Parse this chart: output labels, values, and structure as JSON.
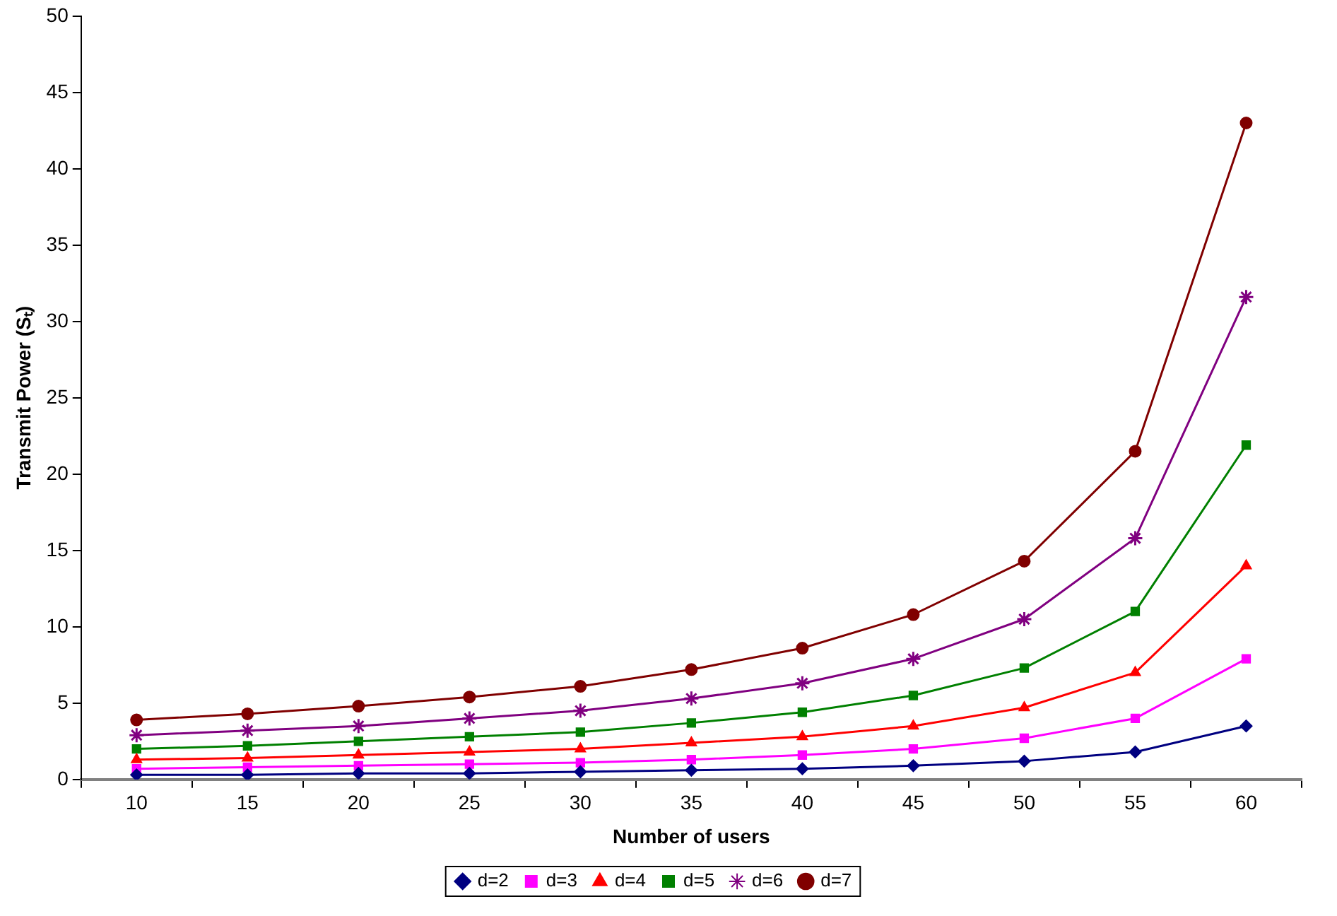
{
  "chart_data": {
    "type": "line",
    "xlabel": "Number of users",
    "ylabel": "Transmit Power (Sₜ)",
    "categories": [
      "10",
      "15",
      "20",
      "25",
      "30",
      "35",
      "40",
      "45",
      "50",
      "55",
      "60"
    ],
    "ylim": [
      0,
      50
    ],
    "yticks": [
      0,
      5,
      10,
      15,
      20,
      25,
      30,
      35,
      40,
      45,
      50
    ],
    "legend": "bottom",
    "series": [
      {
        "name": "d=2",
        "color": "#000080",
        "marker": "diamond",
        "values": [
          0.3,
          0.3,
          0.4,
          0.4,
          0.5,
          0.6,
          0.7,
          0.9,
          1.2,
          1.8,
          3.5
        ]
      },
      {
        "name": "d=3",
        "color": "#ff00ff",
        "marker": "square",
        "values": [
          0.7,
          0.8,
          0.9,
          1.0,
          1.1,
          1.3,
          1.6,
          2.0,
          2.7,
          4.0,
          7.9
        ]
      },
      {
        "name": "d=4",
        "color": "#ff0000",
        "marker": "triangle",
        "values": [
          1.3,
          1.4,
          1.6,
          1.8,
          2.0,
          2.4,
          2.8,
          3.5,
          4.7,
          7.0,
          14.0
        ]
      },
      {
        "name": "d=5",
        "color": "#008000",
        "marker": "square",
        "values": [
          2.0,
          2.2,
          2.5,
          2.8,
          3.1,
          3.7,
          4.4,
          5.5,
          7.3,
          11.0,
          21.9
        ]
      },
      {
        "name": "d=6",
        "color": "#800080",
        "marker": "cross",
        "values": [
          2.9,
          3.2,
          3.5,
          4.0,
          4.5,
          5.3,
          6.3,
          7.9,
          10.5,
          15.8,
          31.6
        ]
      },
      {
        "name": "d=7",
        "color": "#800000",
        "marker": "circle",
        "values": [
          3.9,
          4.3,
          4.8,
          5.4,
          6.1,
          7.2,
          8.6,
          10.8,
          14.3,
          21.5,
          43.0
        ]
      }
    ]
  }
}
